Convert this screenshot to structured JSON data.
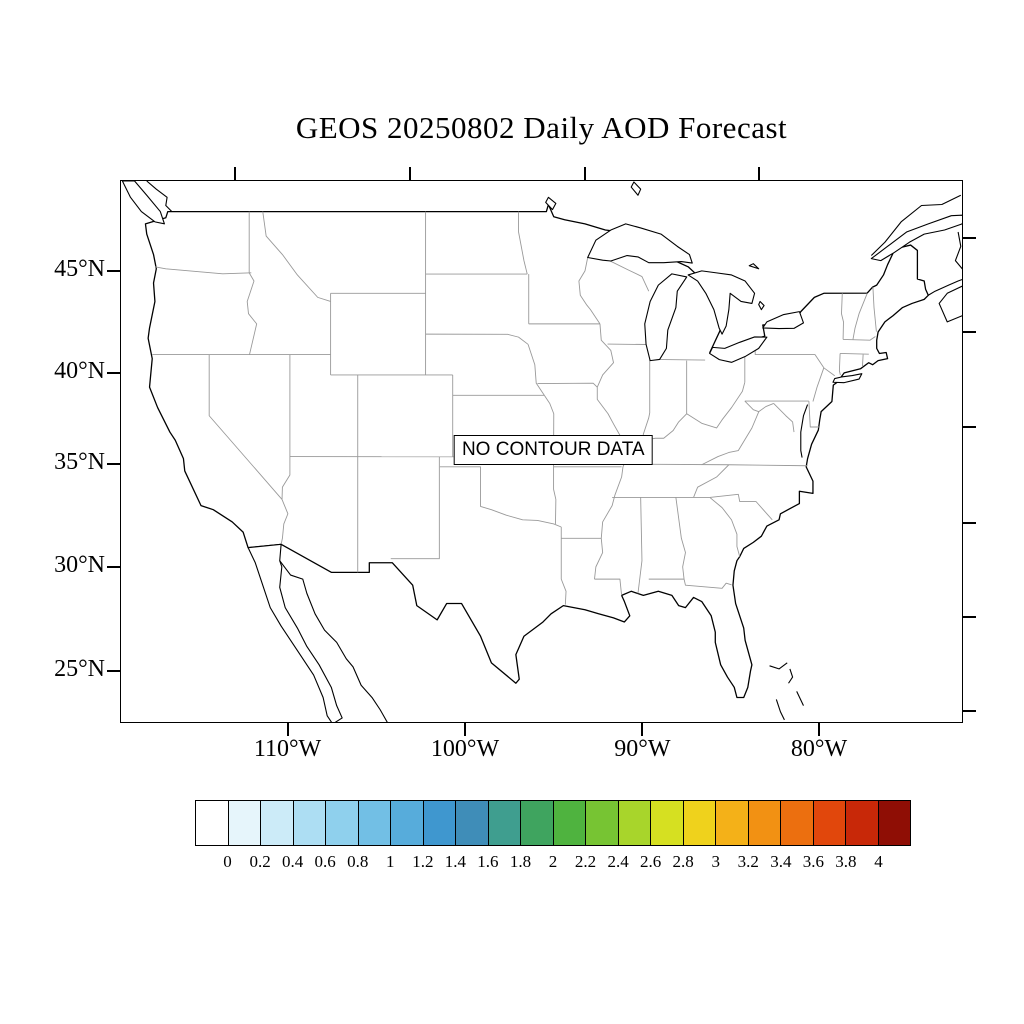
{
  "title": "GEOS 20250802 Daily AOD Forecast",
  "map": {
    "no_data_label": "NO CONTOUR DATA",
    "lat_ticks": [
      "45°N",
      "40°N",
      "35°N",
      "30°N",
      "25°N"
    ],
    "lon_ticks": [
      "110°W",
      "100°W",
      "90°W",
      "80°W"
    ]
  },
  "colorbar": {
    "tick_labels": [
      "0",
      "0.2",
      "0.4",
      "0.6",
      "0.8",
      "1",
      "1.2",
      "1.4",
      "1.6",
      "1.8",
      "2",
      "2.2",
      "2.4",
      "2.6",
      "2.8",
      "3",
      "3.2",
      "3.4",
      "3.6",
      "3.8",
      "4"
    ],
    "colors": [
      "#FFFFFF",
      "#E6F5FB",
      "#CCEBF8",
      "#ADDEF3",
      "#8FD0ED",
      "#72BFE5",
      "#57ACDB",
      "#3F97CF",
      "#3F8DB8",
      "#3F9E8F",
      "#3FA45F",
      "#4FB33F",
      "#77C433",
      "#A8D52B",
      "#D6E021",
      "#EFD21C",
      "#F4B118",
      "#F29113",
      "#EC6F0F",
      "#E1470C",
      "#C82808",
      "#8F0E05"
    ]
  },
  "chart_data": {
    "type": "heatmap",
    "title": "GEOS 20250802 Daily AOD Forecast",
    "x_axis": {
      "tick_labels": [
        "110°W",
        "100°W",
        "90°W",
        "80°W"
      ]
    },
    "y_axis": {
      "tick_labels": [
        "45°N",
        "40°N",
        "35°N",
        "30°N",
        "25°N"
      ]
    },
    "values": [],
    "annotation": "NO CONTOUR DATA",
    "legend_position": "bottom",
    "colorbar_levels": [
      0,
      0.2,
      0.4,
      0.6,
      0.8,
      1,
      1.2,
      1.4,
      1.6,
      1.8,
      2,
      2.2,
      2.4,
      2.6,
      2.8,
      3,
      3.2,
      3.4,
      3.6,
      3.8,
      4
    ],
    "colorbar_colors": [
      "#FFFFFF",
      "#E6F5FB",
      "#CCEBF8",
      "#ADDEF3",
      "#8FD0ED",
      "#72BFE5",
      "#57ACDB",
      "#3F97CF",
      "#3F8DB8",
      "#3F9E8F",
      "#3FA45F",
      "#4FB33F",
      "#77C433",
      "#A8D52B",
      "#D6E021",
      "#EFD21C",
      "#F4B118",
      "#F29113",
      "#EC6F0F",
      "#E1470C",
      "#C82808",
      "#8F0E05"
    ]
  }
}
